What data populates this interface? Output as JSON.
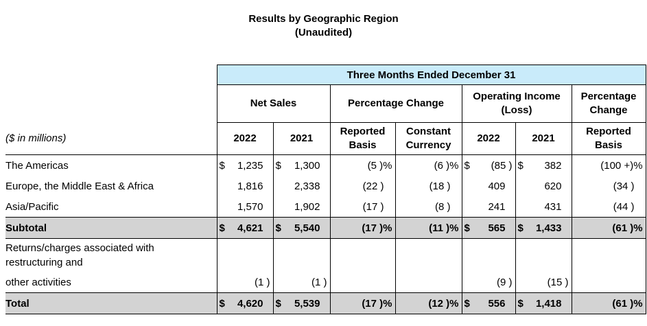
{
  "title": {
    "line1": "Results by Geographic Region",
    "line2": "(Unaudited)"
  },
  "colors": {
    "header_blue": "#c9ebfa",
    "subtotal_gray": "#d3d3d3",
    "border": "#000000"
  },
  "table": {
    "span_header": "Three Months Ended December 31",
    "unit_note": "($ in millions)",
    "groups": [
      {
        "label": "Net Sales",
        "colspan": 2
      },
      {
        "label": "Percentage Change",
        "colspan": 2
      },
      {
        "label": "Operating Income (Loss)",
        "colspan": 2
      },
      {
        "label": "Percentage Change",
        "colspan": 1
      }
    ],
    "subheaders": [
      "2022",
      "2021",
      "Reported Basis",
      "Constant Currency",
      "2022",
      "2021",
      "Reported Basis"
    ],
    "rows": [
      {
        "label": "The Americas",
        "style": "region",
        "cells": [
          {
            "d": "$",
            "v": "1,235"
          },
          {
            "d": "$",
            "v": "1,300"
          },
          {
            "v": "(5 )%"
          },
          {
            "v": "(6 )%"
          },
          {
            "d": "$",
            "v": "(85 )"
          },
          {
            "d": "$",
            "v": "382"
          },
          {
            "v": "(100 +)%"
          }
        ]
      },
      {
        "label": "Europe, the Middle East & Africa",
        "style": "region",
        "cells": [
          {
            "v": "1,816"
          },
          {
            "v": "2,338"
          },
          {
            "v": "(22 )"
          },
          {
            "v": "(18 )"
          },
          {
            "v": "409"
          },
          {
            "v": "620"
          },
          {
            "v": "(34 )"
          }
        ]
      },
      {
        "label": "Asia/Pacific",
        "style": "region",
        "cells": [
          {
            "v": "1,570"
          },
          {
            "v": "1,902"
          },
          {
            "v": "(17 )"
          },
          {
            "v": "(8 )"
          },
          {
            "v": "241"
          },
          {
            "v": "431"
          },
          {
            "v": "(44 )"
          }
        ]
      },
      {
        "label": "Subtotal",
        "style": "gray",
        "cells": [
          {
            "d": "$",
            "v": "4,621"
          },
          {
            "d": "$",
            "v": "5,540"
          },
          {
            "v": "(17 )%"
          },
          {
            "v": "(11 )%"
          },
          {
            "d": "$",
            "v": "565"
          },
          {
            "d": "$",
            "v": "1,433"
          },
          {
            "v": "(61 )%"
          }
        ]
      },
      {
        "label": "Returns/charges associated with restructuring and",
        "style": "wrap",
        "cells": [
          {},
          {},
          {},
          {},
          {},
          {},
          {}
        ]
      },
      {
        "label": "other activities",
        "style": "region",
        "cells": [
          {
            "v": "(1 )"
          },
          {
            "v": "(1 )"
          },
          {},
          {},
          {
            "v": "(9 )"
          },
          {
            "v": "(15 )"
          },
          {}
        ]
      },
      {
        "label": "Total",
        "style": "gray",
        "cells": [
          {
            "d": "$",
            "v": "4,620"
          },
          {
            "d": "$",
            "v": "5,539"
          },
          {
            "v": "(17 )%"
          },
          {
            "v": "(12 )%"
          },
          {
            "d": "$",
            "v": "556"
          },
          {
            "d": "$",
            "v": "1,418"
          },
          {
            "v": "(61 )%"
          }
        ]
      }
    ]
  }
}
